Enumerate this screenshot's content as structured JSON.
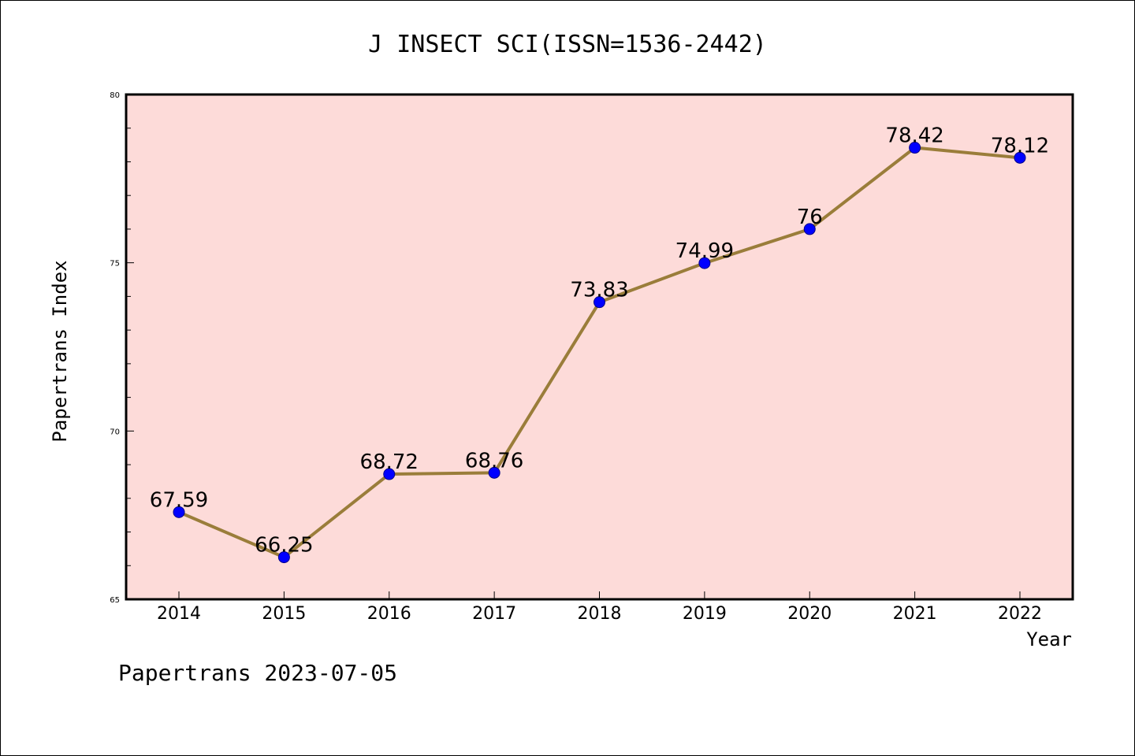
{
  "chart_data": {
    "type": "line",
    "title": "J INSECT SCI(ISSN=1536-2442)",
    "xlabel": "Year",
    "ylabel": "Papertrans Index",
    "categories": [
      "2014",
      "2015",
      "2016",
      "2017",
      "2018",
      "2019",
      "2020",
      "2021",
      "2022"
    ],
    "series": [
      {
        "values": [
          67.59,
          66.25,
          68.72,
          68.76,
          73.83,
          74.99,
          76,
          78.42,
          78.12
        ],
        "labels": [
          "67.59",
          "66.25",
          "68.72",
          "68.76",
          "73.83",
          "74.99",
          "76",
          "78.42",
          "78.12"
        ]
      }
    ],
    "ylim": [
      65,
      80
    ],
    "yticks": [
      "65",
      "70",
      "75",
      "80"
    ],
    "grid": false,
    "colors": {
      "plot_background": "#fddbd9",
      "line": "#9a7d3a",
      "marker": "#0000ff"
    }
  },
  "footer": "Papertrans 2023-07-05"
}
